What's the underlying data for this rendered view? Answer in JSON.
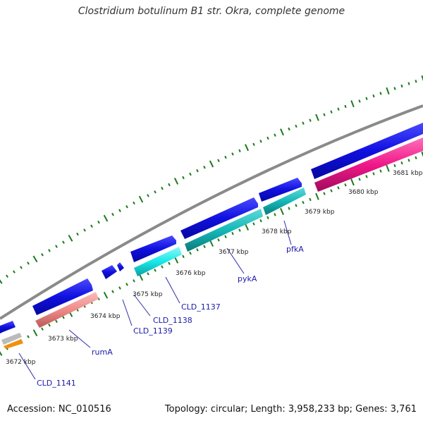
{
  "title": "Clostridium botulinum B1 str. Okra, complete genome",
  "footer": {
    "accession": "Accession: NC_010516",
    "summary": "Topology: circular; Length: 3,958,233 bp; Genes: 3,761"
  },
  "kbp_labels": [
    "3672 kbp",
    "3673 kbp",
    "3674 kbp",
    "3675 kbp",
    "3676 kbp",
    "3677 kbp",
    "3678 kbp",
    "3679 kbp",
    "3680 kbp",
    "3681 kbp"
  ],
  "gene_labels": [
    "CLD_1141",
    "rumA",
    "CLD_1139",
    "CLD_1138",
    "CLD_1137",
    "pykA",
    "pfkA"
  ],
  "colors": {
    "backbone": "#8a8a8a",
    "gene": "#1010e0",
    "tick": "#1a7a1a",
    "salmon": "#f08a88",
    "cyan": "#18e8e8",
    "teal": "#14b8b8",
    "magenta": "#f0188a",
    "orange": "#f09010",
    "grey": "#bbbbbb",
    "label": "#1a1aa8"
  }
}
